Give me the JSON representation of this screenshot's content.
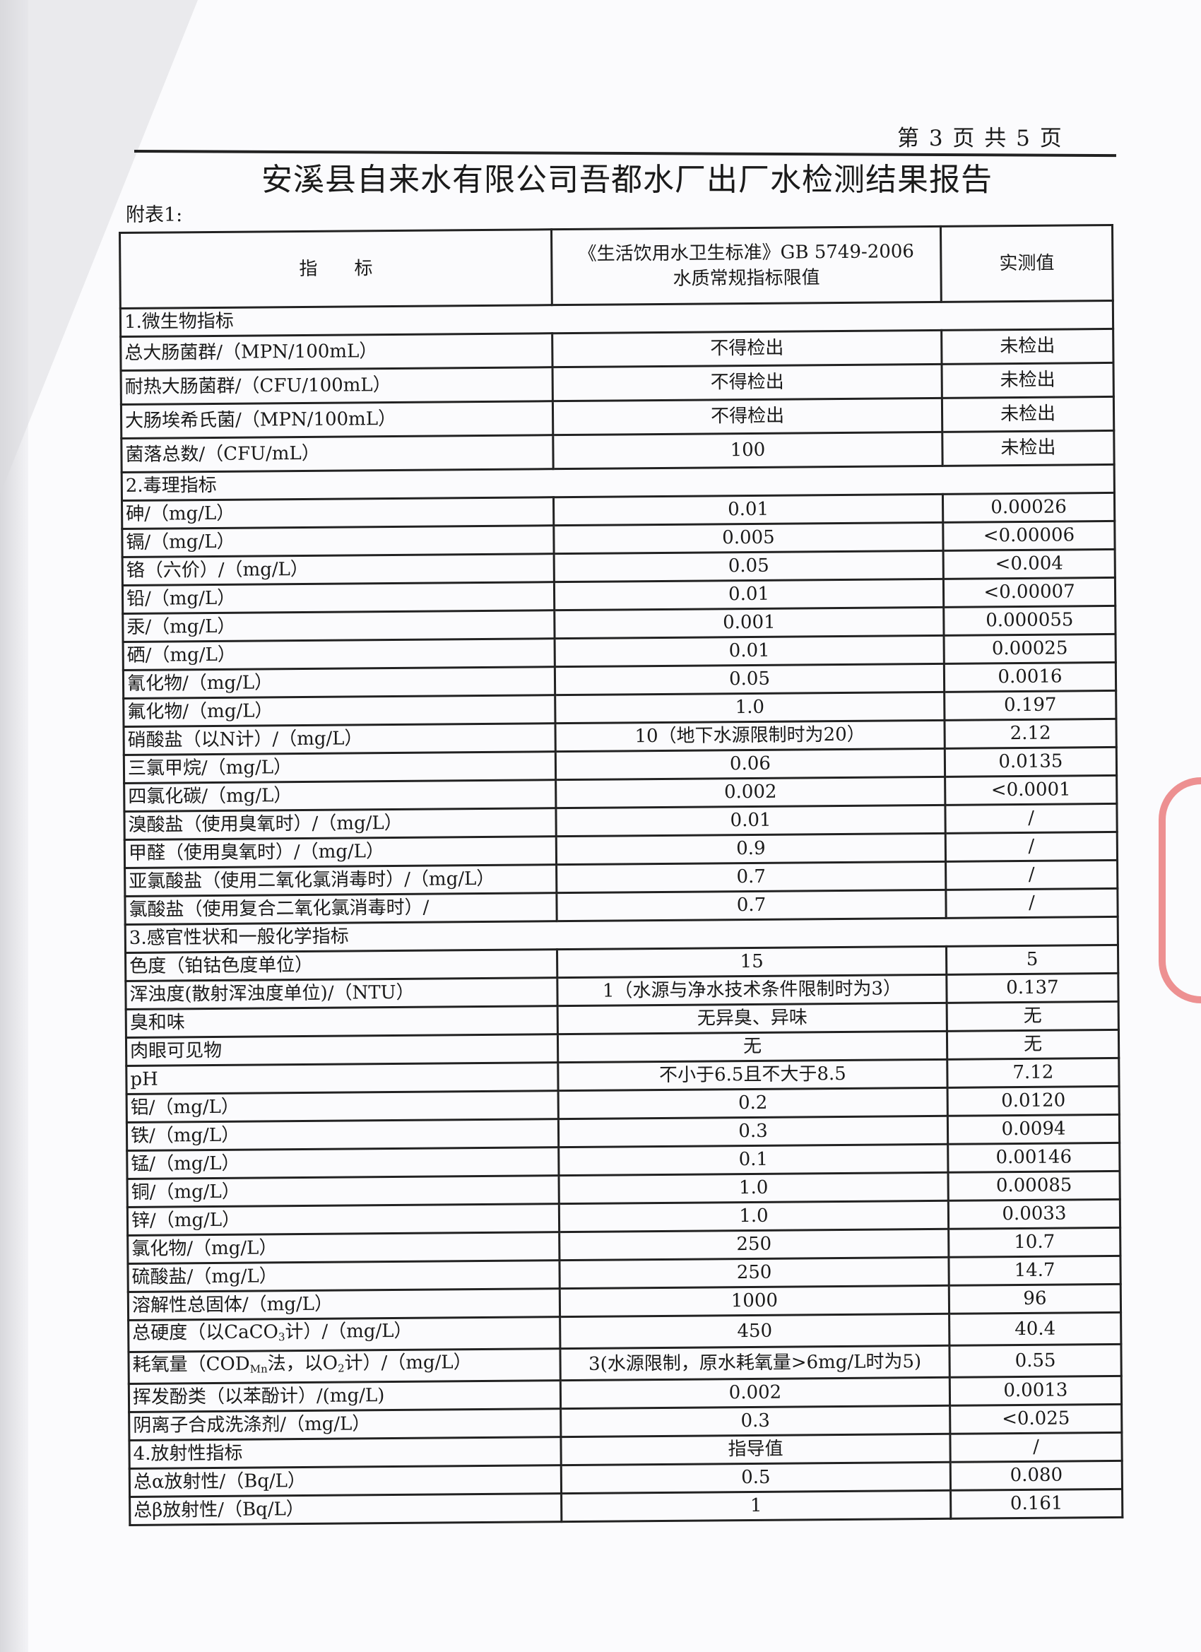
{
  "header": {
    "page_number": "第 3 页  共 5 页",
    "title": "安溪县自来水有限公司吾都水厂出厂水检测结果报告",
    "annex_label": "附表1:"
  },
  "table": {
    "columns": [
      "指　　标",
      "《生活饮用水卫生标准》GB 5749-2006\n水质常规指标限值",
      "实测值"
    ],
    "sections": [
      {
        "title": "1.微生物指标",
        "micro": true,
        "rows": [
          {
            "name": "总大肠菌群/（MPN/100mL）",
            "limit": "不得检出",
            "value": "未检出"
          },
          {
            "name": "耐热大肠菌群/（CFU/100mL）",
            "limit": "不得检出",
            "value": "未检出"
          },
          {
            "name": "大肠埃希氏菌/（MPN/100mL）",
            "limit": "不得检出",
            "value": "未检出"
          },
          {
            "name": "菌落总数/（CFU/mL）",
            "limit": "100",
            "value": "未检出"
          }
        ]
      },
      {
        "title": "2.毒理指标",
        "rows": [
          {
            "name": "砷/（mg/L）",
            "limit": "0.01",
            "value": "0.00026"
          },
          {
            "name": "镉/（mg/L）",
            "limit": "0.005",
            "value": "<0.00006"
          },
          {
            "name": "铬（六价）/（mg/L）",
            "limit": "0.05",
            "value": "<0.004"
          },
          {
            "name": "铅/（mg/L）",
            "limit": "0.01",
            "value": "<0.00007"
          },
          {
            "name": "汞/（mg/L）",
            "limit": "0.001",
            "value": "0.000055"
          },
          {
            "name": "硒/（mg/L）",
            "limit": "0.01",
            "value": "0.00025"
          },
          {
            "name": "氰化物/（mg/L）",
            "limit": "0.05",
            "value": "0.0016"
          },
          {
            "name": "氟化物/（mg/L）",
            "limit": "1.0",
            "value": "0.197"
          },
          {
            "name": "硝酸盐（以N计）/（mg/L）",
            "limit": "10（地下水源限制时为20）",
            "value": "2.12"
          },
          {
            "name": "三氯甲烷/（mg/L）",
            "limit": "0.06",
            "value": "0.0135"
          },
          {
            "name": "四氯化碳/（mg/L）",
            "limit": "0.002",
            "value": "<0.0001"
          },
          {
            "name": "溴酸盐（使用臭氧时）/（mg/L）",
            "limit": "0.01",
            "value": "/"
          },
          {
            "name": "甲醛（使用臭氧时）/（mg/L）",
            "limit": "0.9",
            "value": "/"
          },
          {
            "name": "亚氯酸盐（使用二氧化氯消毒时）/（mg/L）",
            "limit": "0.7",
            "value": "/"
          },
          {
            "name": "氯酸盐（使用复合二氧化氯消毒时）/",
            "limit": "0.7",
            "value": "/"
          }
        ]
      },
      {
        "title": "3.感官性状和一般化学指标",
        "rows": [
          {
            "name": "色度（铂钴色度单位）",
            "limit": "15",
            "value": "5"
          },
          {
            "name": "浑浊度(散射浑浊度单位)/（NTU）",
            "limit": "1（水源与净水技术条件限制时为3）",
            "value": "0.137"
          },
          {
            "name": "臭和味",
            "limit": "无异臭、异味",
            "value": "无"
          },
          {
            "name": "肉眼可见物",
            "limit": "无",
            "value": "无"
          },
          {
            "name": "pH",
            "limit": "不小于6.5且不大于8.5",
            "value": "7.12"
          },
          {
            "name": "铝/（mg/L）",
            "limit": "0.2",
            "value": "0.0120"
          },
          {
            "name": "铁/（mg/L）",
            "limit": "0.3",
            "value": "0.0094"
          },
          {
            "name": "锰/（mg/L）",
            "limit": "0.1",
            "value": "0.00146"
          },
          {
            "name": "铜/（mg/L）",
            "limit": "1.0",
            "value": "0.00085"
          },
          {
            "name": "锌/（mg/L）",
            "limit": "1.0",
            "value": "0.0033"
          },
          {
            "name": "氯化物/（mg/L）",
            "limit": "250",
            "value": "10.7"
          },
          {
            "name": "硫酸盐/（mg/L）",
            "limit": "250",
            "value": "14.7"
          },
          {
            "name": "溶解性总固体/（mg/L）",
            "limit": "1000",
            "value": "96"
          },
          {
            "name": [
              {
                "t": "总硬度（以CaCO"
              },
              {
                "t": "3",
                "sub": true
              },
              {
                "t": "计）/（mg/L）"
              }
            ],
            "limit": "450",
            "value": "40.4"
          },
          {
            "name": [
              {
                "t": "耗氧量（COD"
              },
              {
                "t": "Mn",
                "sub": true
              },
              {
                "t": "法，以O"
              },
              {
                "t": "2",
                "sub": true
              },
              {
                "t": "计）/（mg/L）"
              }
            ],
            "limit": "3(水源限制，原水耗氧量>6mg/L时为5)",
            "value": "0.55"
          },
          {
            "name": "挥发酚类（以苯酚计）/(mg/L)",
            "limit": "0.002",
            "value": "0.0013"
          },
          {
            "name": "阴离子合成洗涤剂/（mg/L）",
            "limit": "0.3",
            "value": "<0.025"
          }
        ]
      },
      {
        "title": "4.放射性指标",
        "title_limit": "指导值",
        "title_value": "/",
        "rows": [
          {
            "name": "总α放射性/（Bq/L）",
            "limit": "0.5",
            "value": "0.080"
          },
          {
            "name": "总β放射性/（Bq/L）",
            "limit": "1",
            "value": "0.161"
          }
        ]
      }
    ]
  },
  "colors": {
    "stamp": "#e23a3a",
    "ink": "#1a1a1a"
  }
}
